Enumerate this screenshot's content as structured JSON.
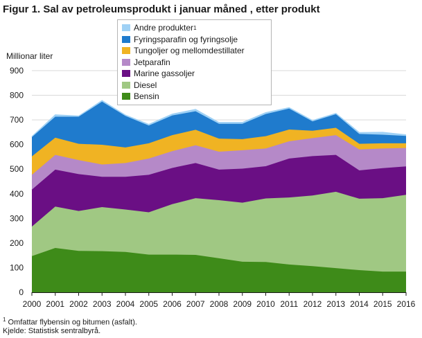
{
  "title": "Figur 1. Sal av petroleumsprodukt i januar måned , etter produkt",
  "footnote_marker": "1",
  "footnote": "Omfattar flybensin og bitumen (asfalt).",
  "source": "Kjelde: Statistisk sentralbyrå.",
  "chart_data": {
    "type": "area",
    "stacked": true,
    "title": "Figur 1. Sal av petroleumsprodukt i januar måned , etter produkt",
    "xlabel": "",
    "ylabel": "Millionar  liter",
    "x": [
      "2000",
      "2001",
      "2002",
      "2003",
      "2004",
      "2005",
      "2006",
      "2007",
      "2008",
      "2009",
      "2010",
      "2011",
      "2012",
      "2013",
      "2014",
      "2015",
      "2016"
    ],
    "ylim": [
      0,
      900
    ],
    "yticks": [
      0,
      100,
      200,
      300,
      400,
      500,
      600,
      700,
      800,
      900
    ],
    "grid": true,
    "legend_position": "top-center",
    "series": [
      {
        "name": "Bensin",
        "color": "#3e8b19",
        "values": [
          147,
          180,
          168,
          167,
          164,
          153,
          153,
          152,
          138,
          124,
          123,
          113,
          106,
          98,
          90,
          84,
          84
        ]
      },
      {
        "name": "Diesel",
        "color": "#a0c883",
        "values": [
          120,
          168,
          162,
          179,
          172,
          172,
          205,
          230,
          236,
          240,
          258,
          272,
          287,
          310,
          290,
          298,
          312
        ]
      },
      {
        "name": "Marine gassoljer",
        "color": "#6a0f84",
        "values": [
          150,
          150,
          150,
          123,
          133,
          152,
          147,
          143,
          124,
          138,
          131,
          158,
          160,
          150,
          115,
          122,
          115
        ]
      },
      {
        "name": "Jetparafin",
        "color": "#b589c8",
        "values": [
          60,
          60,
          57,
          50,
          56,
          66,
          68,
          72,
          73,
          75,
          72,
          70,
          73,
          80,
          85,
          80,
          75
        ]
      },
      {
        "name": "Tungoljer og mellomdestillater",
        "color": "#f0b323",
        "values": [
          75,
          70,
          66,
          80,
          63,
          62,
          65,
          63,
          53,
          45,
          50,
          48,
          30,
          30,
          23,
          21,
          19
        ]
      },
      {
        "name": "Fyringsparafin og fyringsolje",
        "color": "#1f7bcd",
        "values": [
          78,
          85,
          110,
          175,
          128,
          72,
          80,
          75,
          60,
          62,
          90,
          85,
          38,
          55,
          40,
          35,
          30
        ]
      },
      {
        "name": "Andre produkter",
        "color": "#9fd1f5",
        "footnote_marker": "1",
        "values": [
          3,
          8,
          3,
          5,
          4,
          5,
          6,
          8,
          6,
          6,
          6,
          4,
          4,
          4,
          6,
          10,
          5
        ]
      }
    ]
  }
}
